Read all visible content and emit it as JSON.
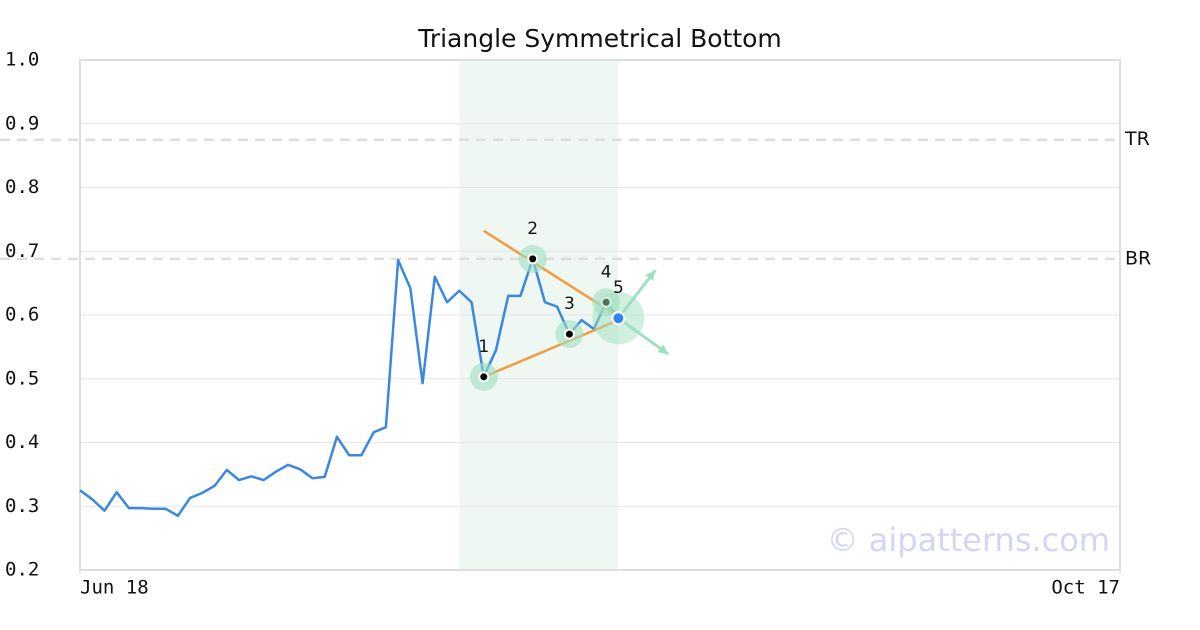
{
  "chart_data": {
    "type": "line",
    "title": "Triangle Symmetrical Bottom",
    "color": "#3a87e0",
    "x": [
      0,
      1,
      2,
      3,
      4,
      5,
      6,
      7,
      8,
      9,
      10,
      11,
      12,
      13,
      14,
      15,
      16,
      17,
      18,
      19,
      20,
      21,
      22,
      23,
      24,
      25,
      26,
      27,
      28,
      29,
      30,
      31,
      32,
      33,
      34,
      35,
      36,
      37,
      38,
      39,
      40,
      41,
      42,
      43,
      44
    ],
    "values": [
      0.325,
      0.311,
      0.293,
      0.322,
      0.297,
      0.297,
      0.296,
      0.296,
      0.285,
      0.313,
      0.321,
      0.332,
      0.357,
      0.341,
      0.347,
      0.341,
      0.354,
      0.365,
      0.358,
      0.344,
      0.346,
      0.409,
      0.38,
      0.38,
      0.416,
      0.424,
      0.686,
      0.642,
      0.493,
      0.66,
      0.62,
      0.638,
      0.62,
      0.503,
      0.545,
      0.63,
      0.63,
      0.688,
      0.62,
      0.613,
      0.57,
      0.592,
      0.578,
      0.62,
      0.595
    ],
    "xlim": [
      0,
      85
    ],
    "xticks": [
      {
        "value": 0,
        "label": "Jun 18"
      },
      {
        "value": 85,
        "label": "Oct 17"
      }
    ],
    "ylim": [
      0.2,
      1.0
    ],
    "yticks": [
      {
        "value": 1.0,
        "label": "1.0"
      },
      0.9,
      0.8,
      0.7,
      0.6,
      0.5,
      0.4,
      0.3,
      0.2
    ],
    "grid": true,
    "levels": [
      {
        "label": "TR",
        "value": 0.875
      },
      {
        "label": "BR",
        "value": 0.688
      }
    ],
    "pattern": {
      "region": [
        31,
        44
      ],
      "line_color": "#f39c3d",
      "points": [
        {
          "label": "1",
          "x": 33,
          "y": 0.503
        },
        {
          "label": "2",
          "x": 37,
          "y": 0.688
        },
        {
          "label": "3",
          "x": 40,
          "y": 0.57
        },
        {
          "label": "4",
          "x": 43,
          "y": 0.62
        },
        {
          "label": "5",
          "x": 44,
          "y": 0.595
        }
      ],
      "trendlines": [
        {
          "x": [
            33,
            44
          ],
          "y": [
            0.732,
            0.598
          ]
        },
        {
          "x": [
            33,
            44
          ],
          "y": [
            0.503,
            0.592
          ]
        }
      ]
    },
    "watermark": "© aipatterns.com"
  }
}
